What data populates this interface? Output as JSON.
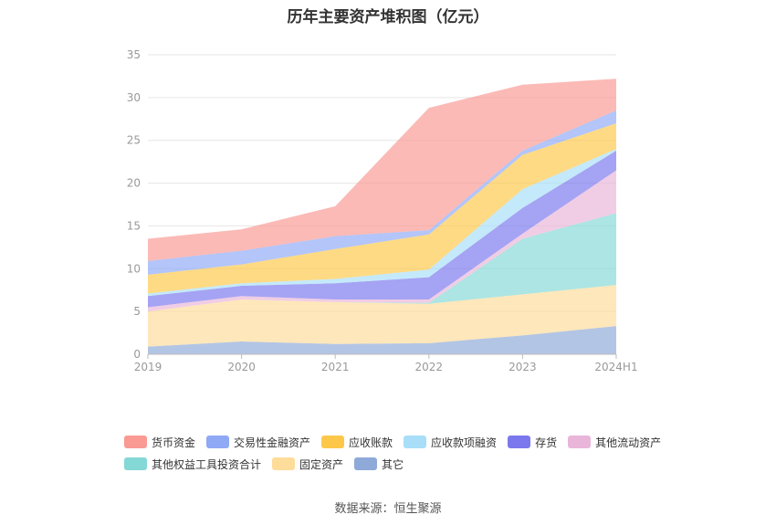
{
  "chart_data": {
    "type": "area",
    "stacked": true,
    "title": "历年主要资产堆积图（亿元）",
    "categories": [
      "2019",
      "2020",
      "2021",
      "2022",
      "2023",
      "2024H1"
    ],
    "ylim": [
      0,
      35
    ],
    "yticks": [
      0,
      5,
      10,
      15,
      20,
      25,
      30,
      35
    ],
    "grid": true,
    "legend_position": "bottom",
    "series": [
      {
        "name": "其它",
        "color": "#8fa9d9",
        "values": [
          0.9,
          1.5,
          1.2,
          1.3,
          2.2,
          3.3
        ]
      },
      {
        "name": "固定资产",
        "color": "#fedc9a",
        "values": [
          4.1,
          4.9,
          4.9,
          4.6,
          4.8,
          4.8
        ]
      },
      {
        "name": "其他权益工具投资合计",
        "color": "#84d8d6",
        "values": [
          0.0,
          0.0,
          0.0,
          0.1,
          6.5,
          8.4
        ]
      },
      {
        "name": "其他流动资产",
        "color": "#e9b6d9",
        "values": [
          0.5,
          0.4,
          0.3,
          0.4,
          0.6,
          5.0
        ]
      },
      {
        "name": "存货",
        "color": "#7b78ed",
        "values": [
          1.3,
          1.2,
          1.9,
          2.6,
          3.0,
          2.3
        ]
      },
      {
        "name": "应收款项融资",
        "color": "#a8def8",
        "values": [
          0.3,
          0.3,
          0.5,
          0.9,
          2.2,
          0.2
        ]
      },
      {
        "name": "应收账款",
        "color": "#fdc84a",
        "values": [
          2.2,
          2.2,
          3.5,
          4.1,
          4.0,
          3.0
        ]
      },
      {
        "name": "交易性金融资产",
        "color": "#8fa9f6",
        "values": [
          1.6,
          1.6,
          1.5,
          0.5,
          0.5,
          1.5
        ]
      },
      {
        "name": "货币资金",
        "color": "#f99a93",
        "values": [
          2.6,
          2.5,
          3.5,
          14.3,
          7.7,
          3.7
        ]
      }
    ]
  },
  "legend_rows": [
    [
      {
        "label": "货币资金",
        "color": "#f99a93"
      },
      {
        "label": "交易性金融资产",
        "color": "#8fa9f6"
      },
      {
        "label": "应收账款",
        "color": "#fdc84a"
      },
      {
        "label": "应收款项融资",
        "color": "#a8def8"
      },
      {
        "label": "存货",
        "color": "#7b78ed"
      },
      {
        "label": "其他流动资产",
        "color": "#e9b6d9"
      }
    ],
    [
      {
        "label": "其他权益工具投资合计",
        "color": "#84d8d6"
      },
      {
        "label": "固定资产",
        "color": "#fedc9a"
      },
      {
        "label": "其它",
        "color": "#8fa9d9"
      }
    ]
  ],
  "source_note": "数据来源：恒生聚源"
}
